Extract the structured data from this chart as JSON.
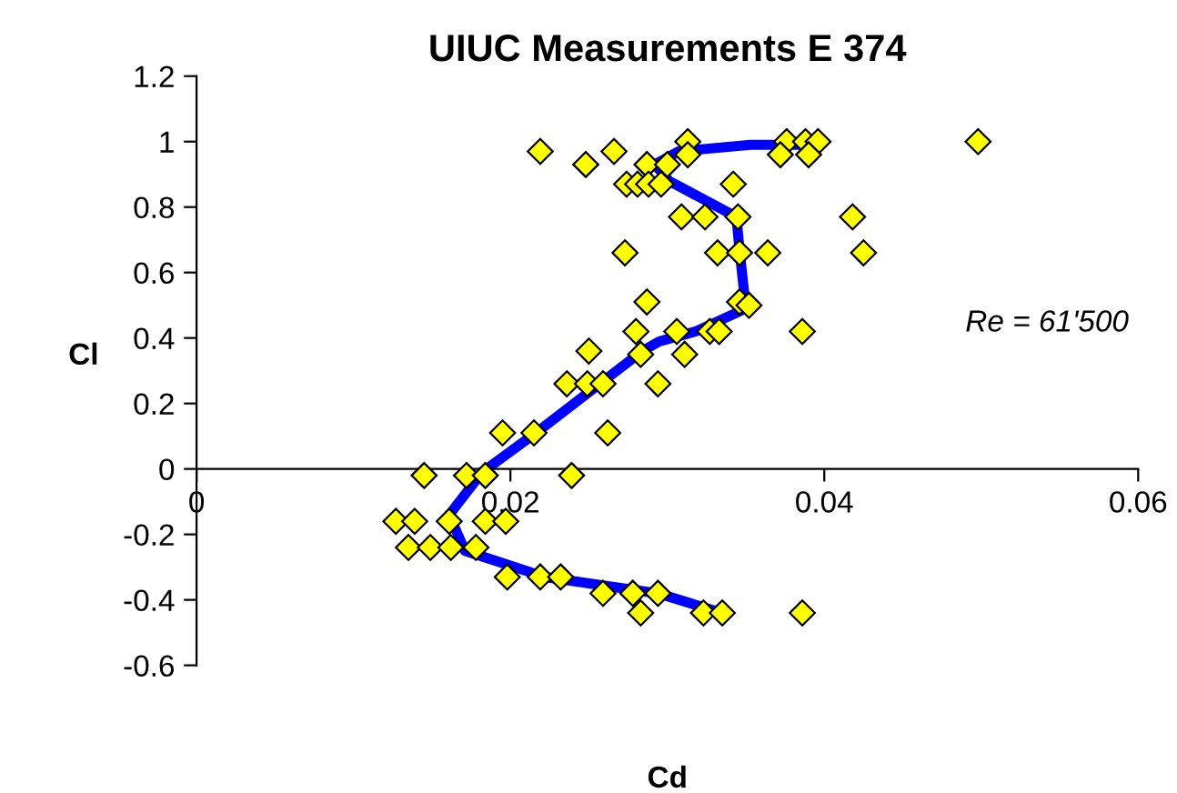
{
  "chart_data": {
    "type": "scatter",
    "title": "UIUC Measurements E 374",
    "xlabel": "Cd",
    "ylabel": "Cl",
    "annotations": [
      "Re = 61'500"
    ],
    "xlim": [
      0,
      0.06
    ],
    "ylim": [
      -0.6,
      1.2
    ],
    "xticks": [
      0,
      0.02,
      0.04,
      0.06
    ],
    "yticks": [
      -0.6,
      -0.4,
      -0.2,
      0,
      0.2,
      0.4,
      0.6,
      0.8,
      1,
      1.2
    ],
    "grid": false,
    "legend": false,
    "series": [
      {
        "color": "#ffff00",
        "marker": "diamond",
        "x": [
          0.0273,
          0.0287,
          0.028,
          0.0306,
          0.0327,
          0.0333,
          0.0283,
          0.0311,
          0.025,
          0.0236,
          0.0249,
          0.0259,
          0.0294,
          0.0195,
          0.0215,
          0.0262,
          0.0145,
          0.0172,
          0.0184,
          0.0239,
          0.0386,
          0.0346,
          0.0352,
          0.0332,
          0.0346,
          0.0364,
          0.0127,
          0.0139,
          0.0161,
          0.0184,
          0.0197,
          0.0135,
          0.0149,
          0.0162,
          0.0178,
          0.0198,
          0.0219,
          0.0232,
          0.0259,
          0.0278,
          0.0294,
          0.0283,
          0.0323,
          0.0335,
          0.0386,
          0.0219,
          0.0248,
          0.0266,
          0.0287,
          0.03,
          0.0313,
          0.0313,
          0.0274,
          0.0281,
          0.0288,
          0.0296,
          0.0342,
          0.0376,
          0.0388,
          0.0396,
          0.0372,
          0.039,
          0.0498,
          0.0309,
          0.0324,
          0.0345,
          0.0418,
          0.0425
        ],
        "values": [
          0.66,
          0.51,
          0.42,
          0.42,
          0.42,
          0.42,
          0.35,
          0.35,
          0.36,
          0.26,
          0.26,
          0.26,
          0.26,
          0.11,
          0.11,
          0.11,
          -0.02,
          -0.02,
          -0.02,
          -0.02,
          0.42,
          0.51,
          0.5,
          0.66,
          0.66,
          0.66,
          -0.16,
          -0.16,
          -0.16,
          -0.16,
          -0.16,
          -0.24,
          -0.24,
          -0.24,
          -0.24,
          -0.33,
          -0.33,
          -0.33,
          -0.38,
          -0.38,
          -0.38,
          -0.44,
          -0.44,
          -0.44,
          -0.44,
          0.97,
          0.93,
          0.97,
          0.93,
          0.93,
          1.0,
          0.96,
          0.87,
          0.87,
          0.87,
          0.87,
          0.87,
          1.0,
          1.0,
          1.0,
          0.96,
          0.96,
          1.0,
          0.77,
          0.77,
          0.77,
          0.77,
          0.66
        ]
      },
      {
        "type": "line",
        "color": "#0000ff",
        "marker": "none",
        "x": [
          0.0335,
          0.0294,
          0.0222,
          0.0171,
          0.0161,
          0.0182,
          0.0219,
          0.0284,
          0.0295,
          0.0318,
          0.035,
          0.0346,
          0.0344,
          0.0301,
          0.0292,
          0.0307,
          0.0353,
          0.0396
        ],
        "values": [
          -0.44,
          -0.38,
          -0.33,
          -0.25,
          -0.14,
          -0.01,
          0.12,
          0.36,
          0.39,
          0.42,
          0.49,
          0.67,
          0.77,
          0.88,
          0.93,
          0.97,
          0.99,
          0.99
        ]
      }
    ]
  }
}
